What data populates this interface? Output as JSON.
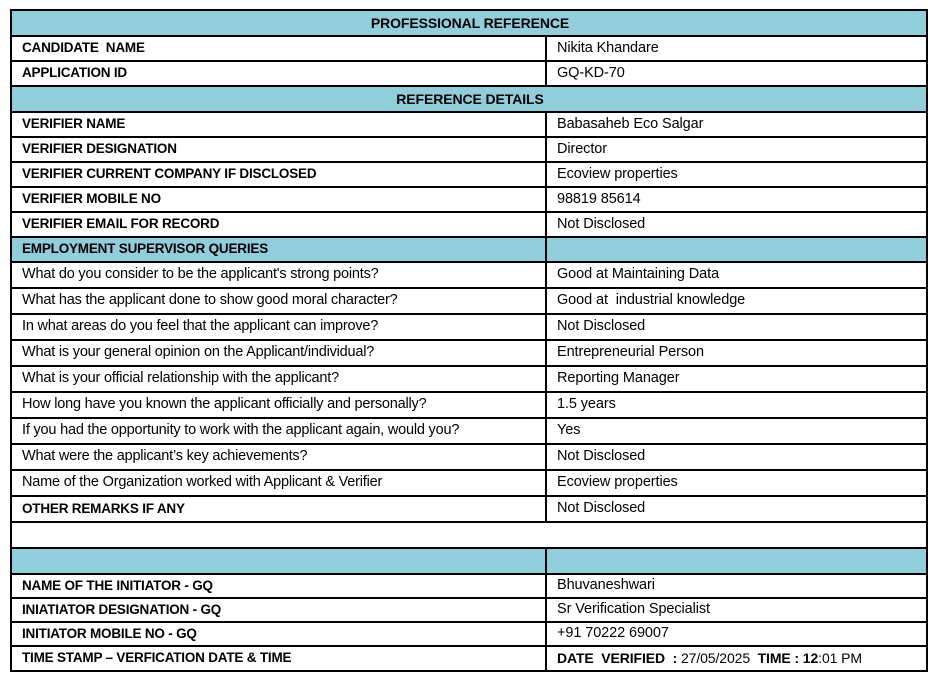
{
  "colors": {
    "section_bg": "#92CDDC",
    "border": "#000000",
    "page_bg": "#FFFFFF",
    "text": "#000000"
  },
  "doc": {
    "title": "PROFESSIONAL REFERENCE",
    "candidate_name": {
      "label": "CANDIDATE  NAME",
      "value": "Nikita Khandare"
    },
    "application_id": {
      "label": "APPLICATION ID",
      "value": "GQ-KD-70"
    },
    "reference_details_title": "REFERENCE DETAILS",
    "verifier_fields": [
      {
        "label": "VERIFIER NAME",
        "value": "Babasaheb Eco Salgar"
      },
      {
        "label": "VERIFIER DESIGNATION",
        "value": "Director"
      },
      {
        "label": "VERIFIER CURRENT COMPANY IF DISCLOSED",
        "value": "Ecoview properties"
      },
      {
        "label": "VERIFIER MOBILE NO",
        "value": "98819 85614"
      },
      {
        "label": "VERIFIER EMAIL FOR RECORD",
        "value": "Not Disclosed"
      }
    ],
    "queries_title": "EMPLOYMENT SUPERVISOR QUERIES",
    "queries": [
      {
        "question": "What do you consider to be the applicant's strong points?",
        "answer": "Good at Maintaining Data"
      },
      {
        "question": "What has the applicant done to show good moral character?",
        "answer": "Good at  industrial knowledge"
      },
      {
        "question": "In what areas do you feel that the applicant can improve?",
        "answer": "Not Disclosed"
      },
      {
        "question": "What is your general opinion on the Applicant/individual?",
        "answer": "Entrepreneurial Person"
      },
      {
        "question": "What is your official relationship with the applicant?",
        "answer": "Reporting Manager"
      },
      {
        "question": "How long have you known the applicant officially and personally?",
        "answer": "1.5 years"
      },
      {
        "question": "If you had the opportunity to work with the applicant again, would you?",
        "answer": "Yes"
      },
      {
        "question": "What were the applicant’s key achievements?",
        "answer": "Not Disclosed"
      },
      {
        "question": "Name of the Organization worked with Applicant & Verifier",
        "answer": "Ecoview properties"
      }
    ],
    "other_remarks": {
      "label": "OTHER REMARKS IF ANY",
      "value": "Not Disclosed"
    },
    "initiator_fields": [
      {
        "label": "NAME OF THE INITIATOR - GQ",
        "value": "Bhuvaneshwari"
      },
      {
        "label": "INIATIATOR DESIGNATION - GQ",
        "value": "Sr Verification Specialist"
      },
      {
        "label": "INITIATOR MOBILE NO - GQ",
        "value": "+91 70222 69007"
      }
    ],
    "timestamp": {
      "label": "TIME STAMP – VERFICATION DATE & TIME",
      "date_label": "DATE  VERIFIED  : ",
      "date_value": "27/05/2025  ",
      "time_label": "TIME : ",
      "time_hour": "12",
      "time_rest": ":01 PM"
    }
  }
}
